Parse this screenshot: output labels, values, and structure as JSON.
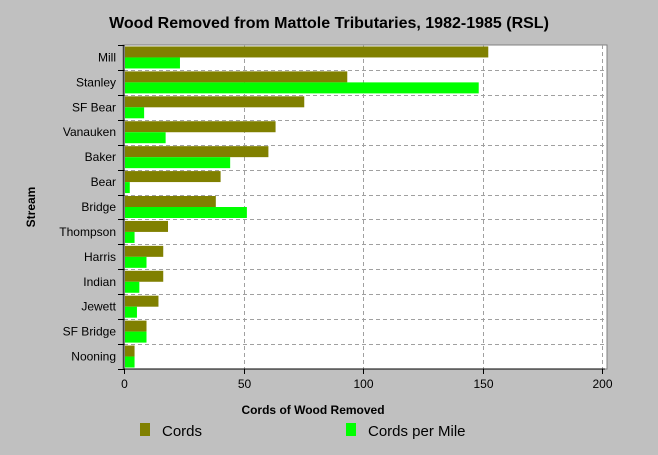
{
  "chart_data": {
    "type": "bar",
    "orientation": "horizontal",
    "title": "Wood Removed from Mattole Tributaries, 1982-1985 (RSL)",
    "xlabel": "Cords of Wood Removed",
    "ylabel": "Stream",
    "xlim": [
      0,
      200
    ],
    "xticks": [
      0,
      50,
      100,
      150,
      200
    ],
    "grid": true,
    "legend_position": "bottom",
    "categories": [
      "Mill",
      "Stanley",
      "SF Bear",
      "Vanauken",
      "Baker",
      "Bear",
      "Bridge",
      "Thompson",
      "Harris",
      "Indian",
      "Jewett",
      "SF Bridge",
      "Nooning"
    ],
    "series": [
      {
        "name": "Cords",
        "color": "#808000",
        "values": [
          152,
          93,
          75,
          63,
          60,
          40,
          38,
          18,
          16,
          16,
          14,
          9,
          4
        ]
      },
      {
        "name": "Cords per Mile",
        "color": "#00ff00",
        "values": [
          23,
          148,
          8,
          17,
          44,
          2,
          51,
          4,
          9,
          6,
          5,
          9,
          4
        ]
      }
    ]
  }
}
